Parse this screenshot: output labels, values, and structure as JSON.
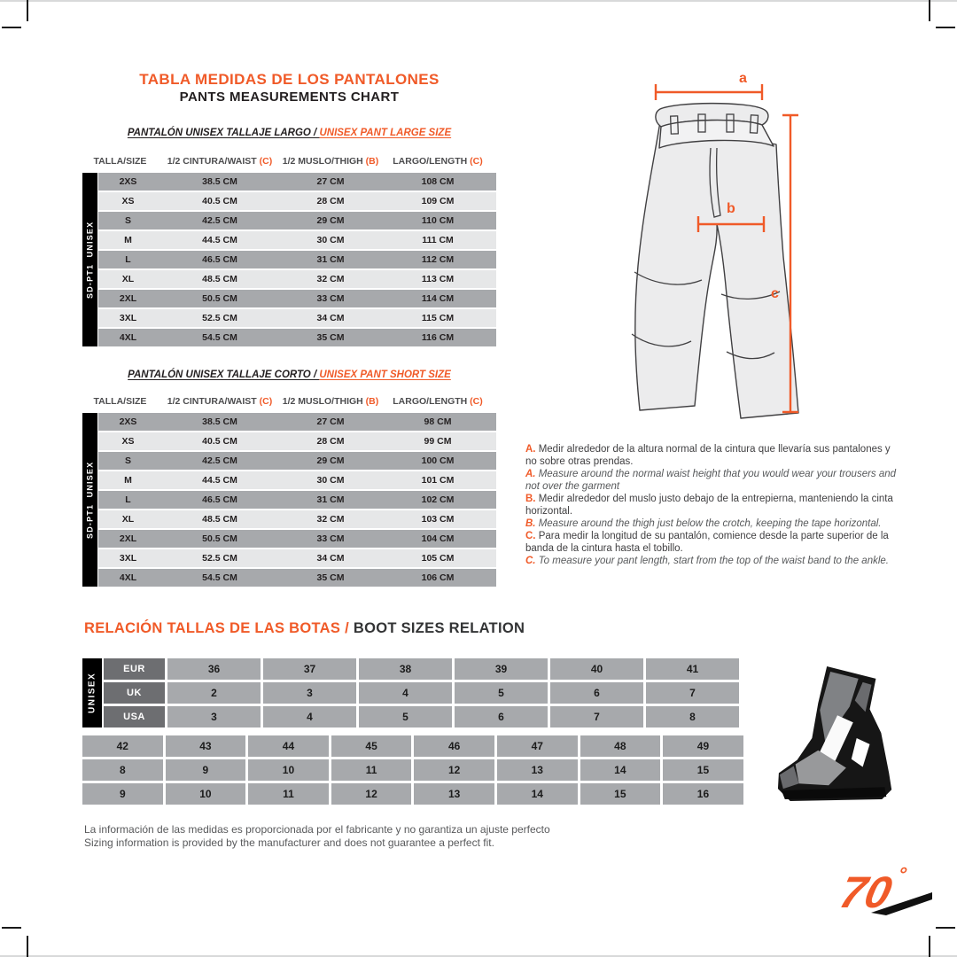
{
  "colors": {
    "accent": "#F05A28",
    "row_dark": "#A7A9AC",
    "row_light": "#E6E7E8"
  },
  "header": {
    "title_es": "TABLA MEDIDAS DE LOS PANTALONES",
    "title_en": "PANTS MEASUREMENTS CHART"
  },
  "pants": {
    "side_label": "SD-PT1  UNISEX",
    "column_headers": [
      {
        "label": "TALLA/SIZE",
        "ref": ""
      },
      {
        "label": "1/2 CINTURA/WAIST",
        "ref": "(C)"
      },
      {
        "label": "1/2 MUSLO/THIGH",
        "ref": "(B)"
      },
      {
        "label": "LARGO/LENGTH",
        "ref": "(C)"
      }
    ],
    "large": {
      "subtitle_es": "PANTALÓN UNISEX TALLAJE LARGO / ",
      "subtitle_en": "UNISEX PANT LARGE SIZE",
      "rows": [
        [
          "2XS",
          "38.5 CM",
          "27 CM",
          "108 CM"
        ],
        [
          "XS",
          "40.5 CM",
          "28 CM",
          "109 CM"
        ],
        [
          "S",
          "42.5 CM",
          "29 CM",
          "110 CM"
        ],
        [
          "M",
          "44.5 CM",
          "30 CM",
          "111 CM"
        ],
        [
          "L",
          "46.5 CM",
          "31 CM",
          "112 CM"
        ],
        [
          "XL",
          "48.5 CM",
          "32 CM",
          "113 CM"
        ],
        [
          "2XL",
          "50.5 CM",
          "33 CM",
          "114 CM"
        ],
        [
          "3XL",
          "52.5 CM",
          "34 CM",
          "115 CM"
        ],
        [
          "4XL",
          "54.5 CM",
          "35 CM",
          "116 CM"
        ]
      ]
    },
    "short": {
      "subtitle_es": "PANTALÓN UNISEX TALLAJE CORTO / ",
      "subtitle_en": "UNISEX PANT SHORT SIZE",
      "rows": [
        [
          "2XS",
          "38.5 CM",
          "27 CM",
          "98 CM"
        ],
        [
          "XS",
          "40.5 CM",
          "28 CM",
          "99 CM"
        ],
        [
          "S",
          "42.5 CM",
          "29 CM",
          "100 CM"
        ],
        [
          "M",
          "44.5 CM",
          "30 CM",
          "101 CM"
        ],
        [
          "L",
          "46.5 CM",
          "31 CM",
          "102 CM"
        ],
        [
          "XL",
          "48.5 CM",
          "32 CM",
          "103 CM"
        ],
        [
          "2XL",
          "50.5 CM",
          "33 CM",
          "104 CM"
        ],
        [
          "3XL",
          "52.5 CM",
          "34 CM",
          "105 CM"
        ],
        [
          "4XL",
          "54.5 CM",
          "35 CM",
          "106 CM"
        ]
      ]
    }
  },
  "diagram": {
    "dim_a": "a",
    "dim_b": "b",
    "dim_c": "c"
  },
  "notes": [
    {
      "letter": "A.",
      "es": "Medir alrededor de la altura normal de la cintura que llevaría sus pantalones y no sobre otras prendas.",
      "en": "Measure around the normal waist height that you would wear your trousers and not over the garment"
    },
    {
      "letter": "B.",
      "es": "Medir alrededor del muslo justo debajo de la entrepierna, manteniendo la cinta horizontal.",
      "en": "Measure around the thigh just below the crotch, keeping the tape horizontal."
    },
    {
      "letter": "C.",
      "es": "Para medir la longitud de su pantalón, comience desde la parte superior de la banda de la cintura hasta el tobillo.",
      "en": "To measure your pant length, start from the top of the waist band to the ankle."
    }
  ],
  "boots": {
    "title_es": "RELACIÓN TALLAS DE LAS BOTAS / ",
    "title_en": "BOOT SIZES RELATION",
    "side_label": "UNISEX",
    "table1": {
      "row_labels": [
        "EUR",
        "UK",
        "USA"
      ],
      "rows": [
        [
          "36",
          "37",
          "38",
          "39",
          "40",
          "41"
        ],
        [
          "2",
          "3",
          "4",
          "5",
          "6",
          "7"
        ],
        [
          "3",
          "4",
          "5",
          "6",
          "7",
          "8"
        ]
      ]
    },
    "table2": {
      "rows": [
        [
          "42",
          "43",
          "44",
          "45",
          "46",
          "47",
          "48",
          "49"
        ],
        [
          "8",
          "9",
          "10",
          "11",
          "12",
          "13",
          "14",
          "15"
        ],
        [
          "9",
          "10",
          "11",
          "12",
          "13",
          "14",
          "15",
          "16"
        ]
      ]
    }
  },
  "footer": {
    "line_es": "La información de las medidas es proporcionada por el fabricante y no garantiza un ajuste perfecto",
    "line_en": "Sizing information is provided by the manufacturer and does not guarantee a perfect fit."
  },
  "logo": {
    "number": "70",
    "degree": "°"
  }
}
